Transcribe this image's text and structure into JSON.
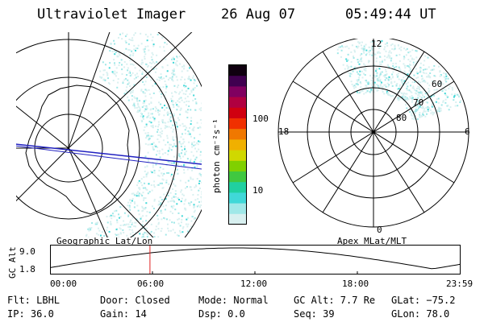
{
  "header": {
    "title": "Ultraviolet Imager",
    "date": "26 Aug 07",
    "time": "05:49:44 UT"
  },
  "colorbar": {
    "unit_label": "photon cm⁻²s⁻¹",
    "ticks": [
      "100",
      "10"
    ],
    "colors": [
      "#d8f0f0",
      "#a0e8e8",
      "#40d8d8",
      "#20d0a0",
      "#40c840",
      "#80d000",
      "#d0d800",
      "#f0b000",
      "#f07800",
      "#f03000",
      "#d00010",
      "#b00040",
      "#800060",
      "#400050",
      "#100010"
    ]
  },
  "geo_panel": {
    "caption": "Geographic Lat/Lon"
  },
  "apex_panel": {
    "caption": "Apex MLat/MLT",
    "mlt_labels": {
      "top": "12",
      "right": "6",
      "bottom": "0",
      "left": "18"
    },
    "lat_labels": [
      "60",
      "70",
      "80"
    ]
  },
  "altitude_plot": {
    "ylabel": "GC Alt",
    "ymax_label": "9.0",
    "ymin_label": "1.8",
    "x_ticks": [
      "00:00",
      "06:00",
      "12:00",
      "18:00",
      "23:59"
    ],
    "marker_hour": 5.83,
    "marker_color": "#e02020"
  },
  "footer": {
    "filter": "Flt: LBHL",
    "ip": "IP: 36.0",
    "door": "Door: Closed",
    "gain": "Gain: 14",
    "mode": "Mode: Normal",
    "dsp": "Dsp:     0.0",
    "gc_alt": "GC Alt: 7.7 Re",
    "seq": "Seq: 39",
    "glat": "GLat: −75.2",
    "glon": "GLon: 78.0"
  }
}
